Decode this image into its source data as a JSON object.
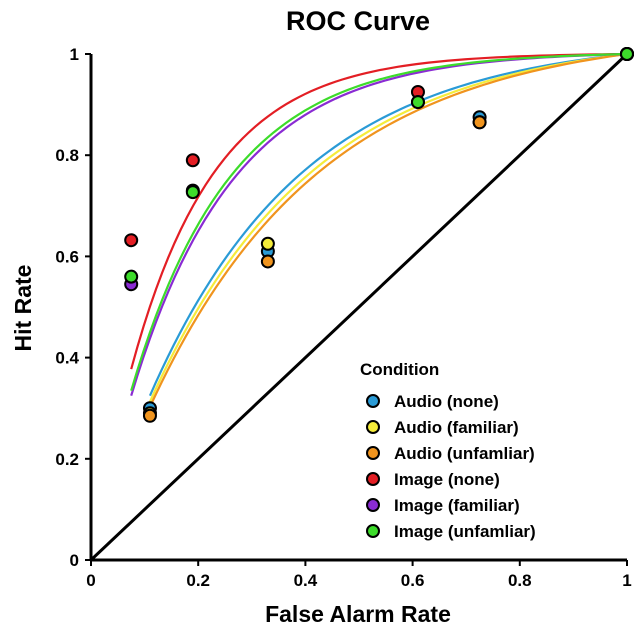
{
  "chart_data": {
    "type": "scatter",
    "title": "ROC Curve",
    "xlabel": "False Alarm Rate",
    "ylabel": "Hit Rate",
    "xlim": [
      0,
      1
    ],
    "ylim": [
      0,
      1
    ],
    "x_ticks": [
      "0",
      "0.2",
      "0.4",
      "0.6",
      "0.8",
      "1"
    ],
    "y_ticks": [
      "0",
      "0.2",
      "0.4",
      "0.6",
      "0.8",
      "1"
    ],
    "grid": false,
    "chance_line": true,
    "legend": {
      "title": "Condition",
      "position": "bottom-right"
    },
    "series": [
      {
        "name": "Audio (none)",
        "color": "#2A9BD6",
        "points": [
          [
            0.11,
            0.3
          ],
          [
            0.33,
            0.61
          ],
          [
            0.725,
            0.875
          ],
          [
            1.0,
            1.0
          ]
        ],
        "curve_k": 3.43
      },
      {
        "name": "Audio (familiar)",
        "color": "#F5EC3A",
        "points": [
          [
            0.11,
            0.29
          ],
          [
            0.33,
            0.625
          ],
          [
            0.725,
            0.865
          ],
          [
            1.0,
            1.0
          ]
        ],
        "curve_k": 3.25
      },
      {
        "name": "Audio (unfamliar)",
        "color": "#F0941E",
        "points": [
          [
            0.11,
            0.285
          ],
          [
            0.33,
            0.59
          ],
          [
            0.725,
            0.865
          ],
          [
            1.0,
            1.0
          ]
        ],
        "curve_k": 3.1
      },
      {
        "name": "Image (none)",
        "color": "#E31E24",
        "points": [
          [
            0.075,
            0.632
          ],
          [
            0.19,
            0.79
          ],
          [
            0.61,
            0.925
          ],
          [
            1.0,
            1.0
          ]
        ],
        "curve_k": 6.3
      },
      {
        "name": "Image (familiar)",
        "color": "#8A2BD3",
        "points": [
          [
            0.075,
            0.545
          ],
          [
            0.19,
            0.73
          ],
          [
            0.61,
            0.905
          ],
          [
            1.0,
            1.0
          ]
        ],
        "curve_k": 5.2
      },
      {
        "name": "Image (unfamliar)",
        "color": "#3DDC2B",
        "points": [
          [
            0.075,
            0.56
          ],
          [
            0.19,
            0.727
          ],
          [
            0.61,
            0.905
          ],
          [
            1.0,
            1.0
          ]
        ],
        "curve_k": 5.4
      }
    ]
  }
}
